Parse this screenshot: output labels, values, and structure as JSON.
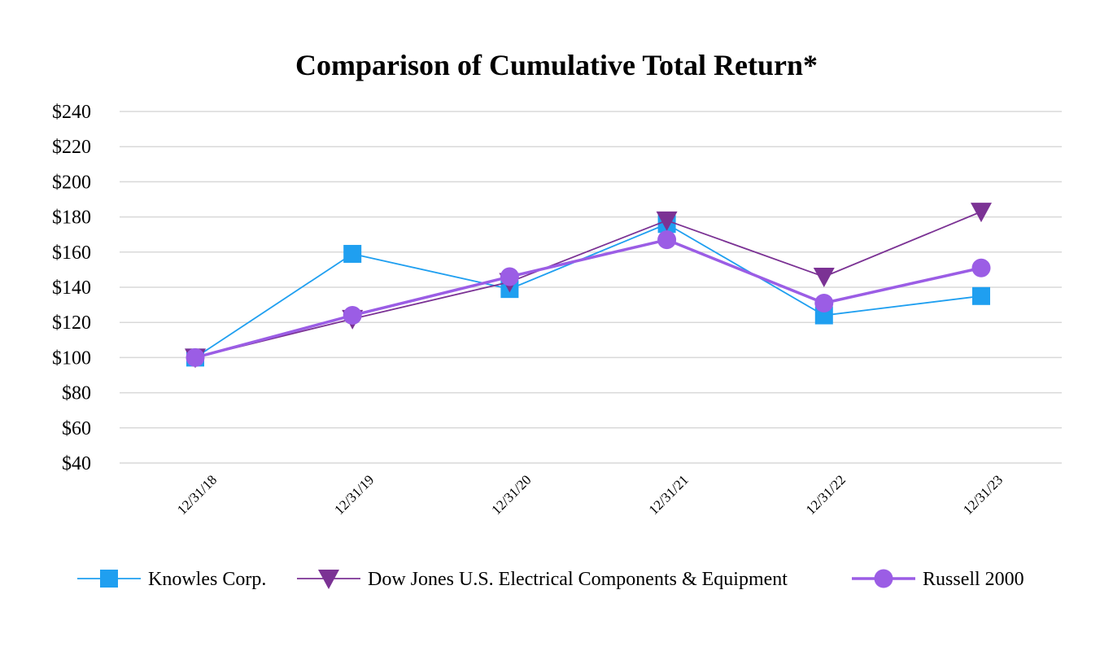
{
  "chart_data": {
    "type": "line",
    "title": "Comparison of Cumulative Total Return*",
    "xlabel": "",
    "ylabel": "",
    "categories": [
      "12/31/18",
      "12/31/19",
      "12/31/20",
      "12/31/21",
      "12/31/22",
      "12/31/23"
    ],
    "ylim": [
      40,
      240
    ],
    "yticks": [
      40,
      60,
      80,
      100,
      120,
      140,
      160,
      180,
      200,
      220,
      240
    ],
    "ytick_labels": [
      "$40",
      "$60",
      "$80",
      "$100",
      "$120",
      "$140",
      "$160",
      "$180",
      "$200",
      "$220",
      "$240"
    ],
    "grid": true,
    "legend_position": "bottom",
    "series": [
      {
        "name": "Knowles Corp.",
        "values": [
          100,
          159,
          139,
          176,
          124,
          135
        ],
        "color": "#1f9ff0",
        "marker": "square"
      },
      {
        "name": "Dow Jones U.S. Electrical Components & Equipment",
        "values": [
          100,
          122,
          143,
          178,
          146,
          183
        ],
        "color": "#7b3294",
        "marker": "triangle-down"
      },
      {
        "name": "Russell 2000",
        "values": [
          100,
          124,
          146,
          167,
          131,
          151
        ],
        "color": "#9b5de5",
        "marker": "circle"
      }
    ]
  }
}
